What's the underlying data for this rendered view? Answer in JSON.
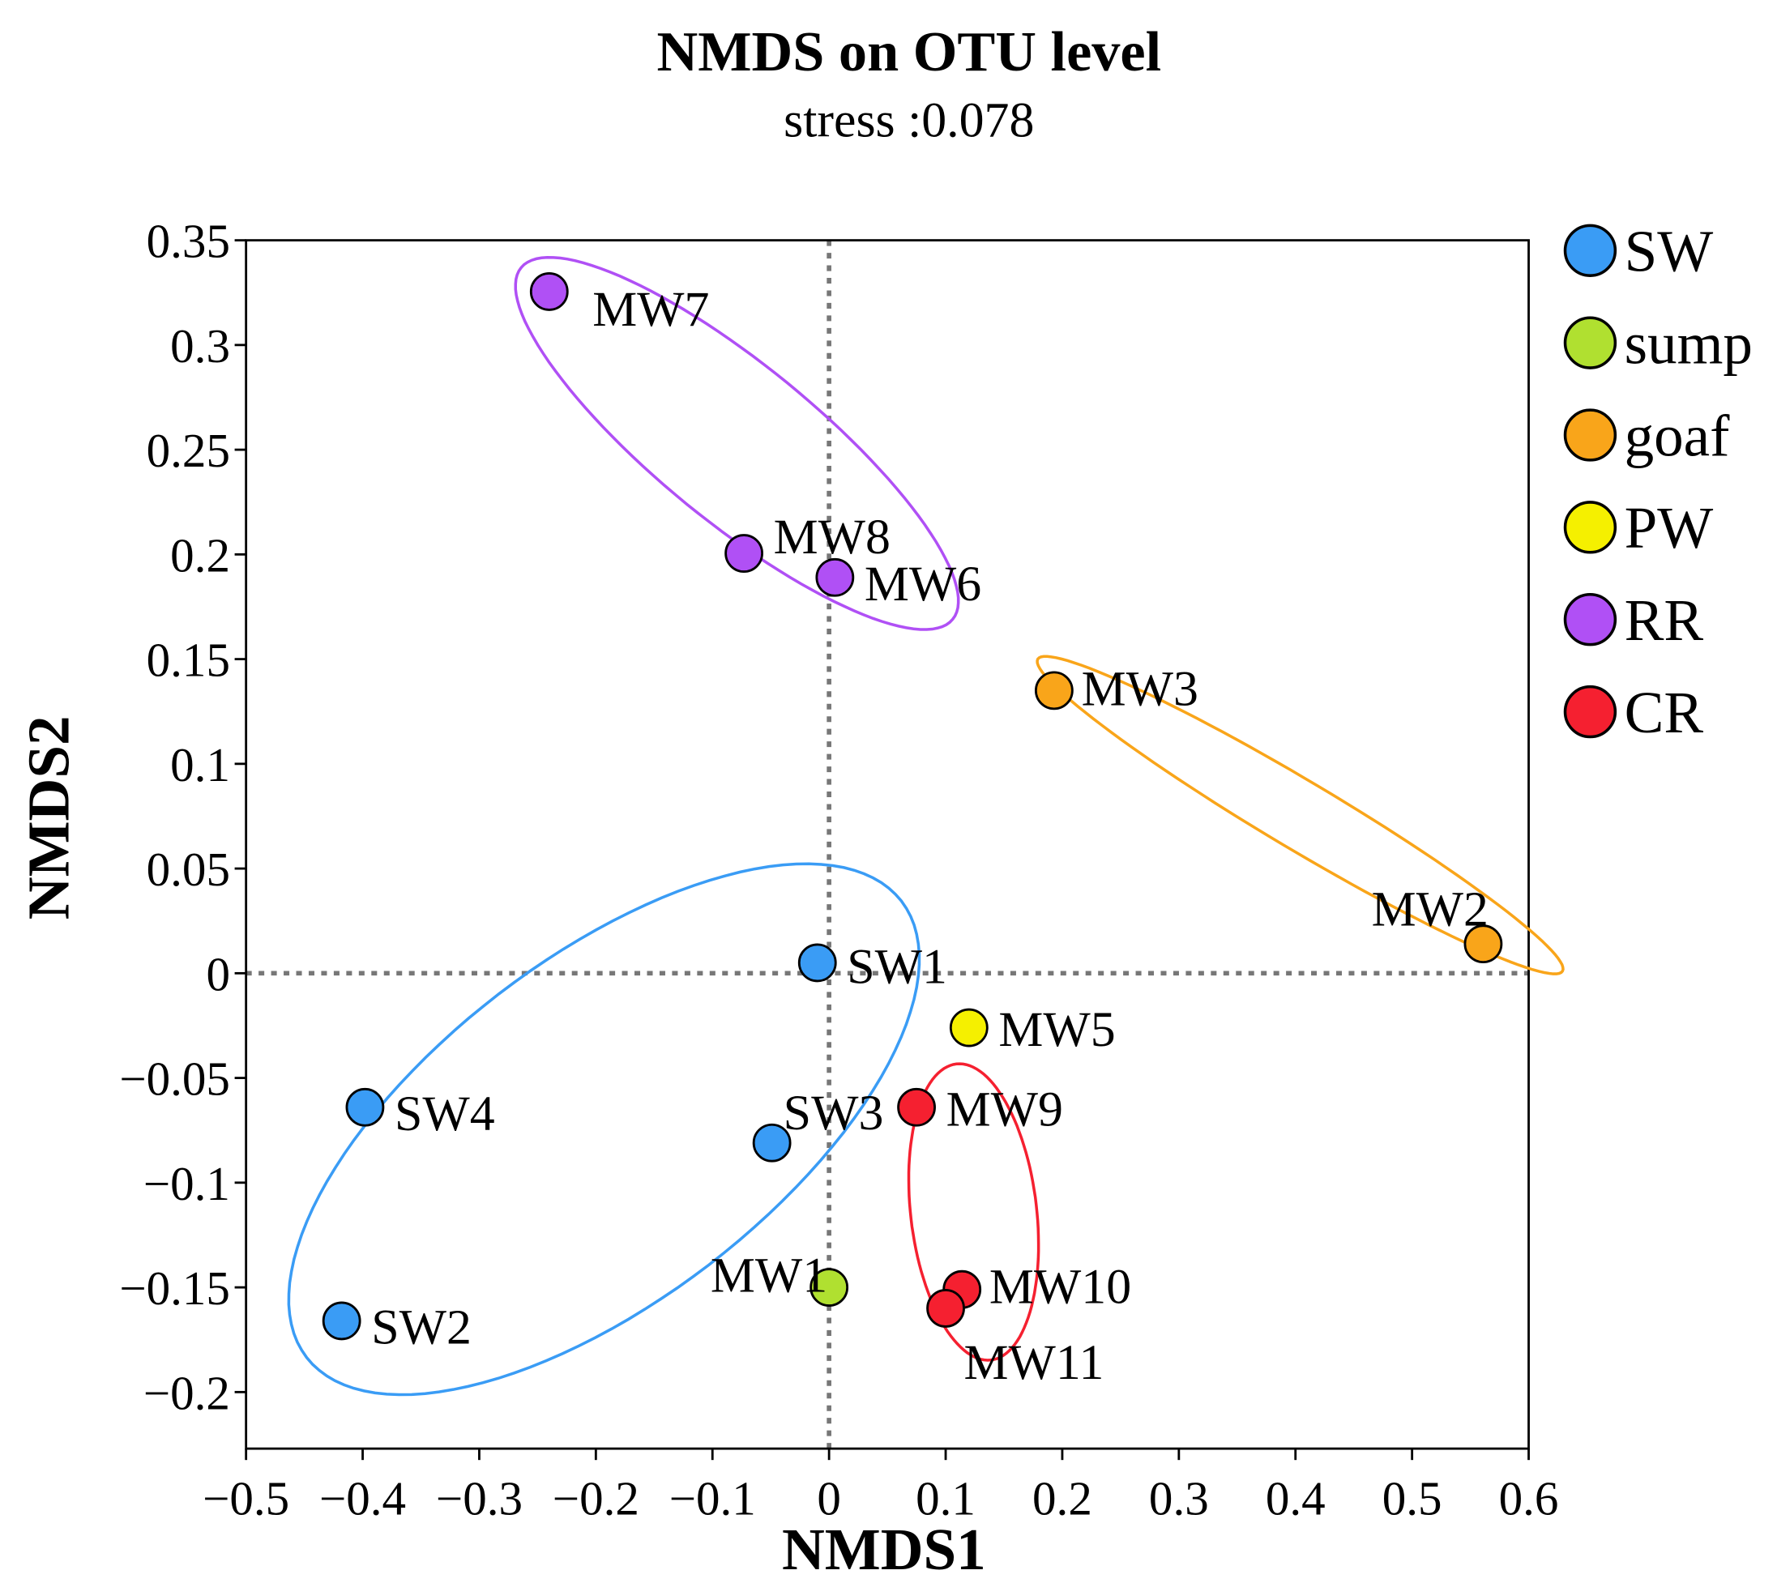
{
  "chart_data": {
    "type": "scatter",
    "title": "NMDS on OTU level",
    "subtitle": "stress :0.078",
    "xlabel": "NMDS1",
    "ylabel": "NMDS2",
    "xlim": [
      -0.5,
      0.6
    ],
    "ylim": [
      -0.227,
      0.35
    ],
    "xticks": [
      -0.5,
      -0.4,
      -0.3,
      -0.2,
      -0.1,
      0,
      0.1,
      0.2,
      0.3,
      0.4,
      0.5,
      0.6
    ],
    "xtick_labels": [
      "−0.5",
      "−0.4",
      "−0.3",
      "−0.2",
      "−0.1",
      "0",
      "0.1",
      "0.2",
      "0.3",
      "0.4",
      "0.5",
      "0.6"
    ],
    "yticks": [
      0.35,
      0.3,
      0.25,
      0.2,
      0.15,
      0.1,
      0.05,
      0,
      -0.05,
      -0.1,
      -0.15,
      -0.2
    ],
    "ytick_labels": [
      "0.35",
      "0.3",
      "0.25",
      "0.2",
      "0.15",
      "0.1",
      "0.05",
      "0",
      "−0.05",
      "−0.1",
      "−0.15",
      "−0.2"
    ],
    "grid": false,
    "reference_lines": {
      "x": 0,
      "y": 0,
      "style": "dotted"
    },
    "legend_position": "right",
    "groups": [
      {
        "name": "SW",
        "color": "#3a9cf5"
      },
      {
        "name": "sump",
        "color": "#b0e030"
      },
      {
        "name": "goaf",
        "color": "#f9a51a"
      },
      {
        "name": "PW",
        "color": "#f5f000"
      },
      {
        "name": "RR",
        "color": "#b050f5"
      },
      {
        "name": "CR",
        "color": "#f52030"
      }
    ],
    "points": [
      {
        "label": "MW7",
        "group": "RR",
        "x": -0.24,
        "y": 0.3255
      },
      {
        "label": "MW8",
        "group": "RR",
        "x": -0.073,
        "y": 0.2005
      },
      {
        "label": "MW6",
        "group": "RR",
        "x": 0.005,
        "y": 0.189
      },
      {
        "label": "MW3",
        "group": "goaf",
        "x": 0.193,
        "y": 0.135
      },
      {
        "label": "MW2",
        "group": "goaf",
        "x": 0.561,
        "y": 0.014
      },
      {
        "label": "SW1",
        "group": "SW",
        "x": -0.01,
        "y": 0.005
      },
      {
        "label": "MW5",
        "group": "PW",
        "x": 0.12,
        "y": -0.026
      },
      {
        "label": "SW4",
        "group": "SW",
        "x": -0.398,
        "y": -0.064
      },
      {
        "label": "SW3",
        "group": "SW",
        "x": -0.049,
        "y": -0.081
      },
      {
        "label": "MW9",
        "group": "CR",
        "x": 0.075,
        "y": -0.064
      },
      {
        "label": "MW1",
        "group": "sump",
        "x": 0.0,
        "y": -0.15
      },
      {
        "label": "MW10",
        "group": "CR",
        "x": 0.114,
        "y": -0.151
      },
      {
        "label": "MW11",
        "group": "CR",
        "x": 0.1,
        "y": -0.16
      },
      {
        "label": "SW2",
        "group": "SW",
        "x": -0.418,
        "y": -0.166
      }
    ],
    "ellipses": [
      {
        "group": "RR",
        "center": [
          -0.079,
          0.253
        ],
        "axis1": [
          0.185,
          -0.084
        ],
        "axis2": [
          -0.043,
          -0.029
        ]
      },
      {
        "group": "goaf",
        "center": [
          0.404,
          0.0755
        ],
        "axis1": [
          0.225,
          -0.0745
        ],
        "axis2": [
          -0.015,
          -0.014
        ]
      },
      {
        "group": "SW",
        "center": [
          -0.193,
          -0.0745
        ],
        "axis1": [
          0.255,
          0.109
        ],
        "axis2": [
          0.09,
          -0.0647
        ]
      },
      {
        "group": "CR",
        "center": [
          0.124,
          -0.114
        ],
        "axis1": [
          0.0147,
          -0.0707
        ],
        "axis2": [
          0.0537,
          0.0033
        ]
      }
    ]
  }
}
